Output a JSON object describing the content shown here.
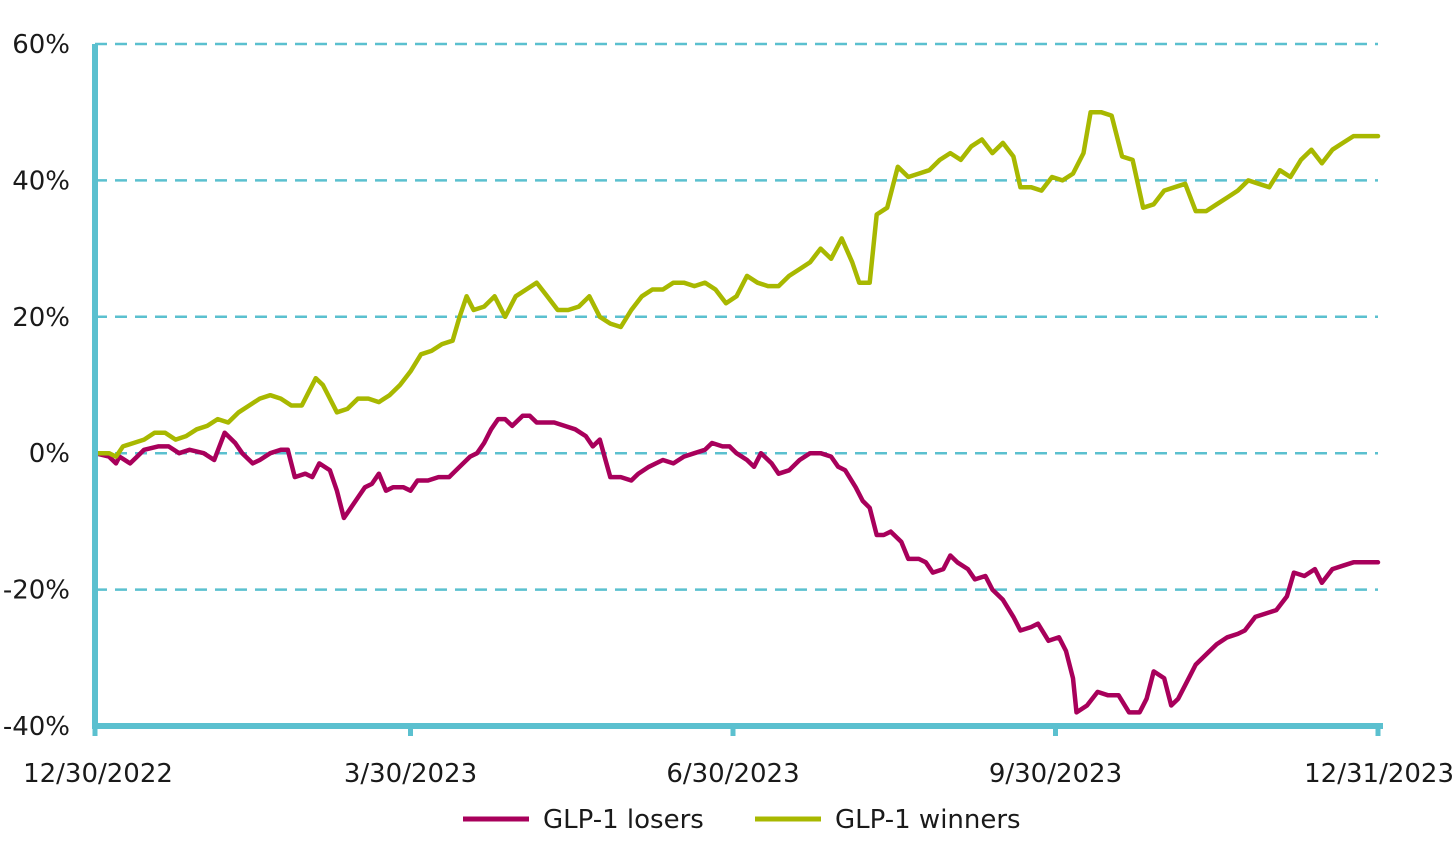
{
  "chart_data": {
    "type": "line",
    "title": "",
    "xlabel": "",
    "ylabel": "",
    "ylim": [
      -40,
      60
    ],
    "grid": true,
    "legend_position": "bottom-center",
    "y_ticks": [
      {
        "value": 60,
        "label": "60%"
      },
      {
        "value": 40,
        "label": "40%"
      },
      {
        "value": 20,
        "label": "20%"
      },
      {
        "value": 0,
        "label": "0%"
      },
      {
        "value": -20,
        "label": "-20%"
      },
      {
        "value": -40,
        "label": "-40%"
      }
    ],
    "x_ticks": [
      {
        "date": "2022-12-30",
        "label": "12/30/2022"
      },
      {
        "date": "2023-03-30",
        "label": "3/30/2023"
      },
      {
        "date": "2023-06-30",
        "label": "6/30/2023"
      },
      {
        "date": "2023-09-30",
        "label": "9/30/2023"
      },
      {
        "date": "2023-12-31",
        "label": "12/31/2023"
      }
    ],
    "axis_color": "#5bc0cf",
    "series": [
      {
        "name": "GLP-1 losers",
        "color": "#a8005b",
        "points": [
          [
            "2022-12-30",
            0
          ],
          [
            "2023-01-03",
            -0.5
          ],
          [
            "2023-01-05",
            -1.5
          ],
          [
            "2023-01-06",
            -0.5
          ],
          [
            "2023-01-09",
            -1.5
          ],
          [
            "2023-01-11",
            -0.5
          ],
          [
            "2023-01-13",
            0.5
          ],
          [
            "2023-01-17",
            1
          ],
          [
            "2023-01-20",
            1
          ],
          [
            "2023-01-23",
            0
          ],
          [
            "2023-01-26",
            0.5
          ],
          [
            "2023-01-30",
            0
          ],
          [
            "2023-02-02",
            -1
          ],
          [
            "2023-02-05",
            3
          ],
          [
            "2023-02-08",
            1.5
          ],
          [
            "2023-02-10",
            0
          ],
          [
            "2023-02-13",
            -1.5
          ],
          [
            "2023-02-15",
            -1
          ],
          [
            "2023-02-18",
            0
          ],
          [
            "2023-02-21",
            0.5
          ],
          [
            "2023-02-23",
            0.5
          ],
          [
            "2023-02-25",
            -3.5
          ],
          [
            "2023-02-28",
            -3
          ],
          [
            "2023-03-02",
            -3.5
          ],
          [
            "2023-03-04",
            -1.5
          ],
          [
            "2023-03-07",
            -2.5
          ],
          [
            "2023-03-09",
            -5.5
          ],
          [
            "2023-03-11",
            -9.5
          ],
          [
            "2023-03-13",
            -8
          ],
          [
            "2023-03-15",
            -6.5
          ],
          [
            "2023-03-17",
            -5
          ],
          [
            "2023-03-19",
            -4.5
          ],
          [
            "2023-03-21",
            -3
          ],
          [
            "2023-03-23",
            -5.5
          ],
          [
            "2023-03-25",
            -5
          ],
          [
            "2023-03-28",
            -5
          ],
          [
            "2023-03-30",
            -5.5
          ],
          [
            "2023-04-01",
            -4
          ],
          [
            "2023-04-04",
            -4
          ],
          [
            "2023-04-07",
            -3.5
          ],
          [
            "2023-04-10",
            -3.5
          ],
          [
            "2023-04-13",
            -2
          ],
          [
            "2023-04-16",
            -0.5
          ],
          [
            "2023-04-18",
            0
          ],
          [
            "2023-04-20",
            1.5
          ],
          [
            "2023-04-22",
            3.5
          ],
          [
            "2023-04-24",
            5
          ],
          [
            "2023-04-26",
            5
          ],
          [
            "2023-04-28",
            4
          ],
          [
            "2023-05-01",
            5.5
          ],
          [
            "2023-05-03",
            5.5
          ],
          [
            "2023-05-05",
            4.5
          ],
          [
            "2023-05-08",
            4.5
          ],
          [
            "2023-05-10",
            4.5
          ],
          [
            "2023-05-13",
            4
          ],
          [
            "2023-05-16",
            3.5
          ],
          [
            "2023-05-19",
            2.5
          ],
          [
            "2023-05-21",
            1
          ],
          [
            "2023-05-23",
            2
          ],
          [
            "2023-05-26",
            -3.5
          ],
          [
            "2023-05-29",
            -3.5
          ],
          [
            "2023-06-01",
            -4
          ],
          [
            "2023-06-03",
            -3
          ],
          [
            "2023-06-06",
            -2
          ],
          [
            "2023-06-08",
            -1.5
          ],
          [
            "2023-06-10",
            -1
          ],
          [
            "2023-06-13",
            -1.5
          ],
          [
            "2023-06-16",
            -0.5
          ],
          [
            "2023-06-19",
            0
          ],
          [
            "2023-06-22",
            0.5
          ],
          [
            "2023-06-24",
            1.5
          ],
          [
            "2023-06-27",
            1
          ],
          [
            "2023-06-29",
            1
          ],
          [
            "2023-07-01",
            0
          ],
          [
            "2023-07-04",
            -1
          ],
          [
            "2023-07-06",
            -2
          ],
          [
            "2023-07-08",
            0
          ],
          [
            "2023-07-11",
            -1.5
          ],
          [
            "2023-07-13",
            -3
          ],
          [
            "2023-07-16",
            -2.5
          ],
          [
            "2023-07-19",
            -1
          ],
          [
            "2023-07-22",
            0
          ],
          [
            "2023-07-25",
            0
          ],
          [
            "2023-07-28",
            -0.5
          ],
          [
            "2023-07-30",
            -2
          ],
          [
            "2023-08-01",
            -2.5
          ],
          [
            "2023-08-04",
            -5
          ],
          [
            "2023-08-06",
            -7
          ],
          [
            "2023-08-08",
            -8
          ],
          [
            "2023-08-10",
            -12
          ],
          [
            "2023-08-12",
            -12
          ],
          [
            "2023-08-14",
            -11.5
          ],
          [
            "2023-08-17",
            -13
          ],
          [
            "2023-08-19",
            -15.5
          ],
          [
            "2023-08-22",
            -15.5
          ],
          [
            "2023-08-24",
            -16
          ],
          [
            "2023-08-26",
            -17.5
          ],
          [
            "2023-08-29",
            -17
          ],
          [
            "2023-08-31",
            -15
          ],
          [
            "2023-09-02",
            -16
          ],
          [
            "2023-09-05",
            -17
          ],
          [
            "2023-09-07",
            -18.5
          ],
          [
            "2023-09-10",
            -18
          ],
          [
            "2023-09-12",
            -20
          ],
          [
            "2023-09-15",
            -21.5
          ],
          [
            "2023-09-18",
            -24
          ],
          [
            "2023-09-20",
            -26
          ],
          [
            "2023-09-23",
            -25.5
          ],
          [
            "2023-09-25",
            -25
          ],
          [
            "2023-09-28",
            -27.5
          ],
          [
            "2023-10-01",
            -27
          ],
          [
            "2023-10-03",
            -29
          ],
          [
            "2023-10-05",
            -33
          ],
          [
            "2023-10-06",
            -38
          ],
          [
            "2023-10-09",
            -37
          ],
          [
            "2023-10-12",
            -35
          ],
          [
            "2023-10-15",
            -35.5
          ],
          [
            "2023-10-18",
            -35.5
          ],
          [
            "2023-10-21",
            -38
          ],
          [
            "2023-10-24",
            -38
          ],
          [
            "2023-10-26",
            -36
          ],
          [
            "2023-10-28",
            -32
          ],
          [
            "2023-10-31",
            -33
          ],
          [
            "2023-11-02",
            -37
          ],
          [
            "2023-11-04",
            -36
          ],
          [
            "2023-11-07",
            -33
          ],
          [
            "2023-11-09",
            -31
          ],
          [
            "2023-11-12",
            -29.5
          ],
          [
            "2023-11-15",
            -28
          ],
          [
            "2023-11-18",
            -27
          ],
          [
            "2023-11-21",
            -26.5
          ],
          [
            "2023-11-23",
            -26
          ],
          [
            "2023-11-26",
            -24
          ],
          [
            "2023-11-29",
            -23.5
          ],
          [
            "2023-12-02",
            -23
          ],
          [
            "2023-12-05",
            -21
          ],
          [
            "2023-12-07",
            -17.5
          ],
          [
            "2023-12-10",
            -18
          ],
          [
            "2023-12-13",
            -17
          ],
          [
            "2023-12-15",
            -19
          ],
          [
            "2023-12-18",
            -17
          ],
          [
            "2023-12-21",
            -16.5
          ],
          [
            "2023-12-24",
            -16
          ],
          [
            "2023-12-27",
            -16
          ],
          [
            "2023-12-31",
            -16
          ]
        ]
      },
      {
        "name": "GLP-1 winners",
        "color": "#a8b800",
        "points": [
          [
            "2022-12-30",
            0
          ],
          [
            "2023-01-03",
            0
          ],
          [
            "2023-01-05",
            -0.5
          ],
          [
            "2023-01-07",
            1
          ],
          [
            "2023-01-10",
            1.5
          ],
          [
            "2023-01-13",
            2
          ],
          [
            "2023-01-16",
            3
          ],
          [
            "2023-01-19",
            3
          ],
          [
            "2023-01-22",
            2
          ],
          [
            "2023-01-25",
            2.5
          ],
          [
            "2023-01-28",
            3.5
          ],
          [
            "2023-01-31",
            4
          ],
          [
            "2023-02-03",
            5
          ],
          [
            "2023-02-06",
            4.5
          ],
          [
            "2023-02-09",
            6
          ],
          [
            "2023-02-12",
            7
          ],
          [
            "2023-02-15",
            8
          ],
          [
            "2023-02-18",
            8.5
          ],
          [
            "2023-02-21",
            8
          ],
          [
            "2023-02-24",
            7
          ],
          [
            "2023-02-27",
            7
          ],
          [
            "2023-03-01",
            9
          ],
          [
            "2023-03-03",
            11
          ],
          [
            "2023-03-05",
            10
          ],
          [
            "2023-03-07",
            8
          ],
          [
            "2023-03-09",
            6
          ],
          [
            "2023-03-12",
            6.5
          ],
          [
            "2023-03-15",
            8
          ],
          [
            "2023-03-18",
            8
          ],
          [
            "2023-03-21",
            7.5
          ],
          [
            "2023-03-24",
            8.5
          ],
          [
            "2023-03-27",
            10
          ],
          [
            "2023-03-30",
            12
          ],
          [
            "2023-04-02",
            14.5
          ],
          [
            "2023-04-05",
            15
          ],
          [
            "2023-04-08",
            16
          ],
          [
            "2023-04-11",
            16.5
          ],
          [
            "2023-04-13",
            20
          ],
          [
            "2023-04-15",
            23
          ],
          [
            "2023-04-17",
            21
          ],
          [
            "2023-04-20",
            21.5
          ],
          [
            "2023-04-23",
            23
          ],
          [
            "2023-04-26",
            20
          ],
          [
            "2023-04-29",
            23
          ],
          [
            "2023-05-02",
            24
          ],
          [
            "2023-05-05",
            25
          ],
          [
            "2023-05-08",
            23
          ],
          [
            "2023-05-11",
            21
          ],
          [
            "2023-05-14",
            21
          ],
          [
            "2023-05-17",
            21.5
          ],
          [
            "2023-05-20",
            23
          ],
          [
            "2023-05-23",
            20
          ],
          [
            "2023-05-26",
            19
          ],
          [
            "2023-05-29",
            18.5
          ],
          [
            "2023-06-01",
            21
          ],
          [
            "2023-06-04",
            23
          ],
          [
            "2023-06-07",
            24
          ],
          [
            "2023-06-10",
            24
          ],
          [
            "2023-06-13",
            25
          ],
          [
            "2023-06-16",
            25
          ],
          [
            "2023-06-19",
            24.5
          ],
          [
            "2023-06-22",
            25
          ],
          [
            "2023-06-25",
            24
          ],
          [
            "2023-06-28",
            22
          ],
          [
            "2023-07-01",
            23
          ],
          [
            "2023-07-04",
            26
          ],
          [
            "2023-07-07",
            25
          ],
          [
            "2023-07-10",
            24.5
          ],
          [
            "2023-07-13",
            24.5
          ],
          [
            "2023-07-16",
            26
          ],
          [
            "2023-07-19",
            27
          ],
          [
            "2023-07-22",
            28
          ],
          [
            "2023-07-25",
            30
          ],
          [
            "2023-07-28",
            28.5
          ],
          [
            "2023-07-31",
            31.5
          ],
          [
            "2023-08-03",
            28
          ],
          [
            "2023-08-05",
            25
          ],
          [
            "2023-08-08",
            25
          ],
          [
            "2023-08-10",
            35
          ],
          [
            "2023-08-13",
            36
          ],
          [
            "2023-08-16",
            42
          ],
          [
            "2023-08-19",
            40.5
          ],
          [
            "2023-08-22",
            41
          ],
          [
            "2023-08-25",
            41.5
          ],
          [
            "2023-08-28",
            43
          ],
          [
            "2023-08-31",
            44
          ],
          [
            "2023-09-03",
            43
          ],
          [
            "2023-09-06",
            45
          ],
          [
            "2023-09-09",
            46
          ],
          [
            "2023-09-12",
            44
          ],
          [
            "2023-09-15",
            45.5
          ],
          [
            "2023-09-18",
            43.5
          ],
          [
            "2023-09-20",
            39
          ],
          [
            "2023-09-23",
            39
          ],
          [
            "2023-09-26",
            38.5
          ],
          [
            "2023-09-29",
            40.5
          ],
          [
            "2023-10-02",
            40
          ],
          [
            "2023-10-05",
            41
          ],
          [
            "2023-10-08",
            44
          ],
          [
            "2023-10-10",
            50
          ],
          [
            "2023-10-13",
            50
          ],
          [
            "2023-10-16",
            49.5
          ],
          [
            "2023-10-19",
            43.5
          ],
          [
            "2023-10-22",
            43
          ],
          [
            "2023-10-25",
            36
          ],
          [
            "2023-10-28",
            36.5
          ],
          [
            "2023-10-31",
            38.5
          ],
          [
            "2023-11-03",
            39
          ],
          [
            "2023-11-06",
            39.5
          ],
          [
            "2023-11-09",
            35.5
          ],
          [
            "2023-11-12",
            35.5
          ],
          [
            "2023-11-15",
            36.5
          ],
          [
            "2023-11-18",
            37.5
          ],
          [
            "2023-11-21",
            38.5
          ],
          [
            "2023-11-24",
            40
          ],
          [
            "2023-11-27",
            39.5
          ],
          [
            "2023-11-30",
            39
          ],
          [
            "2023-12-03",
            41.5
          ],
          [
            "2023-12-06",
            40.5
          ],
          [
            "2023-12-09",
            43
          ],
          [
            "2023-12-12",
            44.5
          ],
          [
            "2023-12-15",
            42.5
          ],
          [
            "2023-12-18",
            44.5
          ],
          [
            "2023-12-21",
            45.5
          ],
          [
            "2023-12-24",
            46.5
          ],
          [
            "2023-12-27",
            46.5
          ],
          [
            "2023-12-31",
            46.5
          ]
        ]
      }
    ]
  }
}
